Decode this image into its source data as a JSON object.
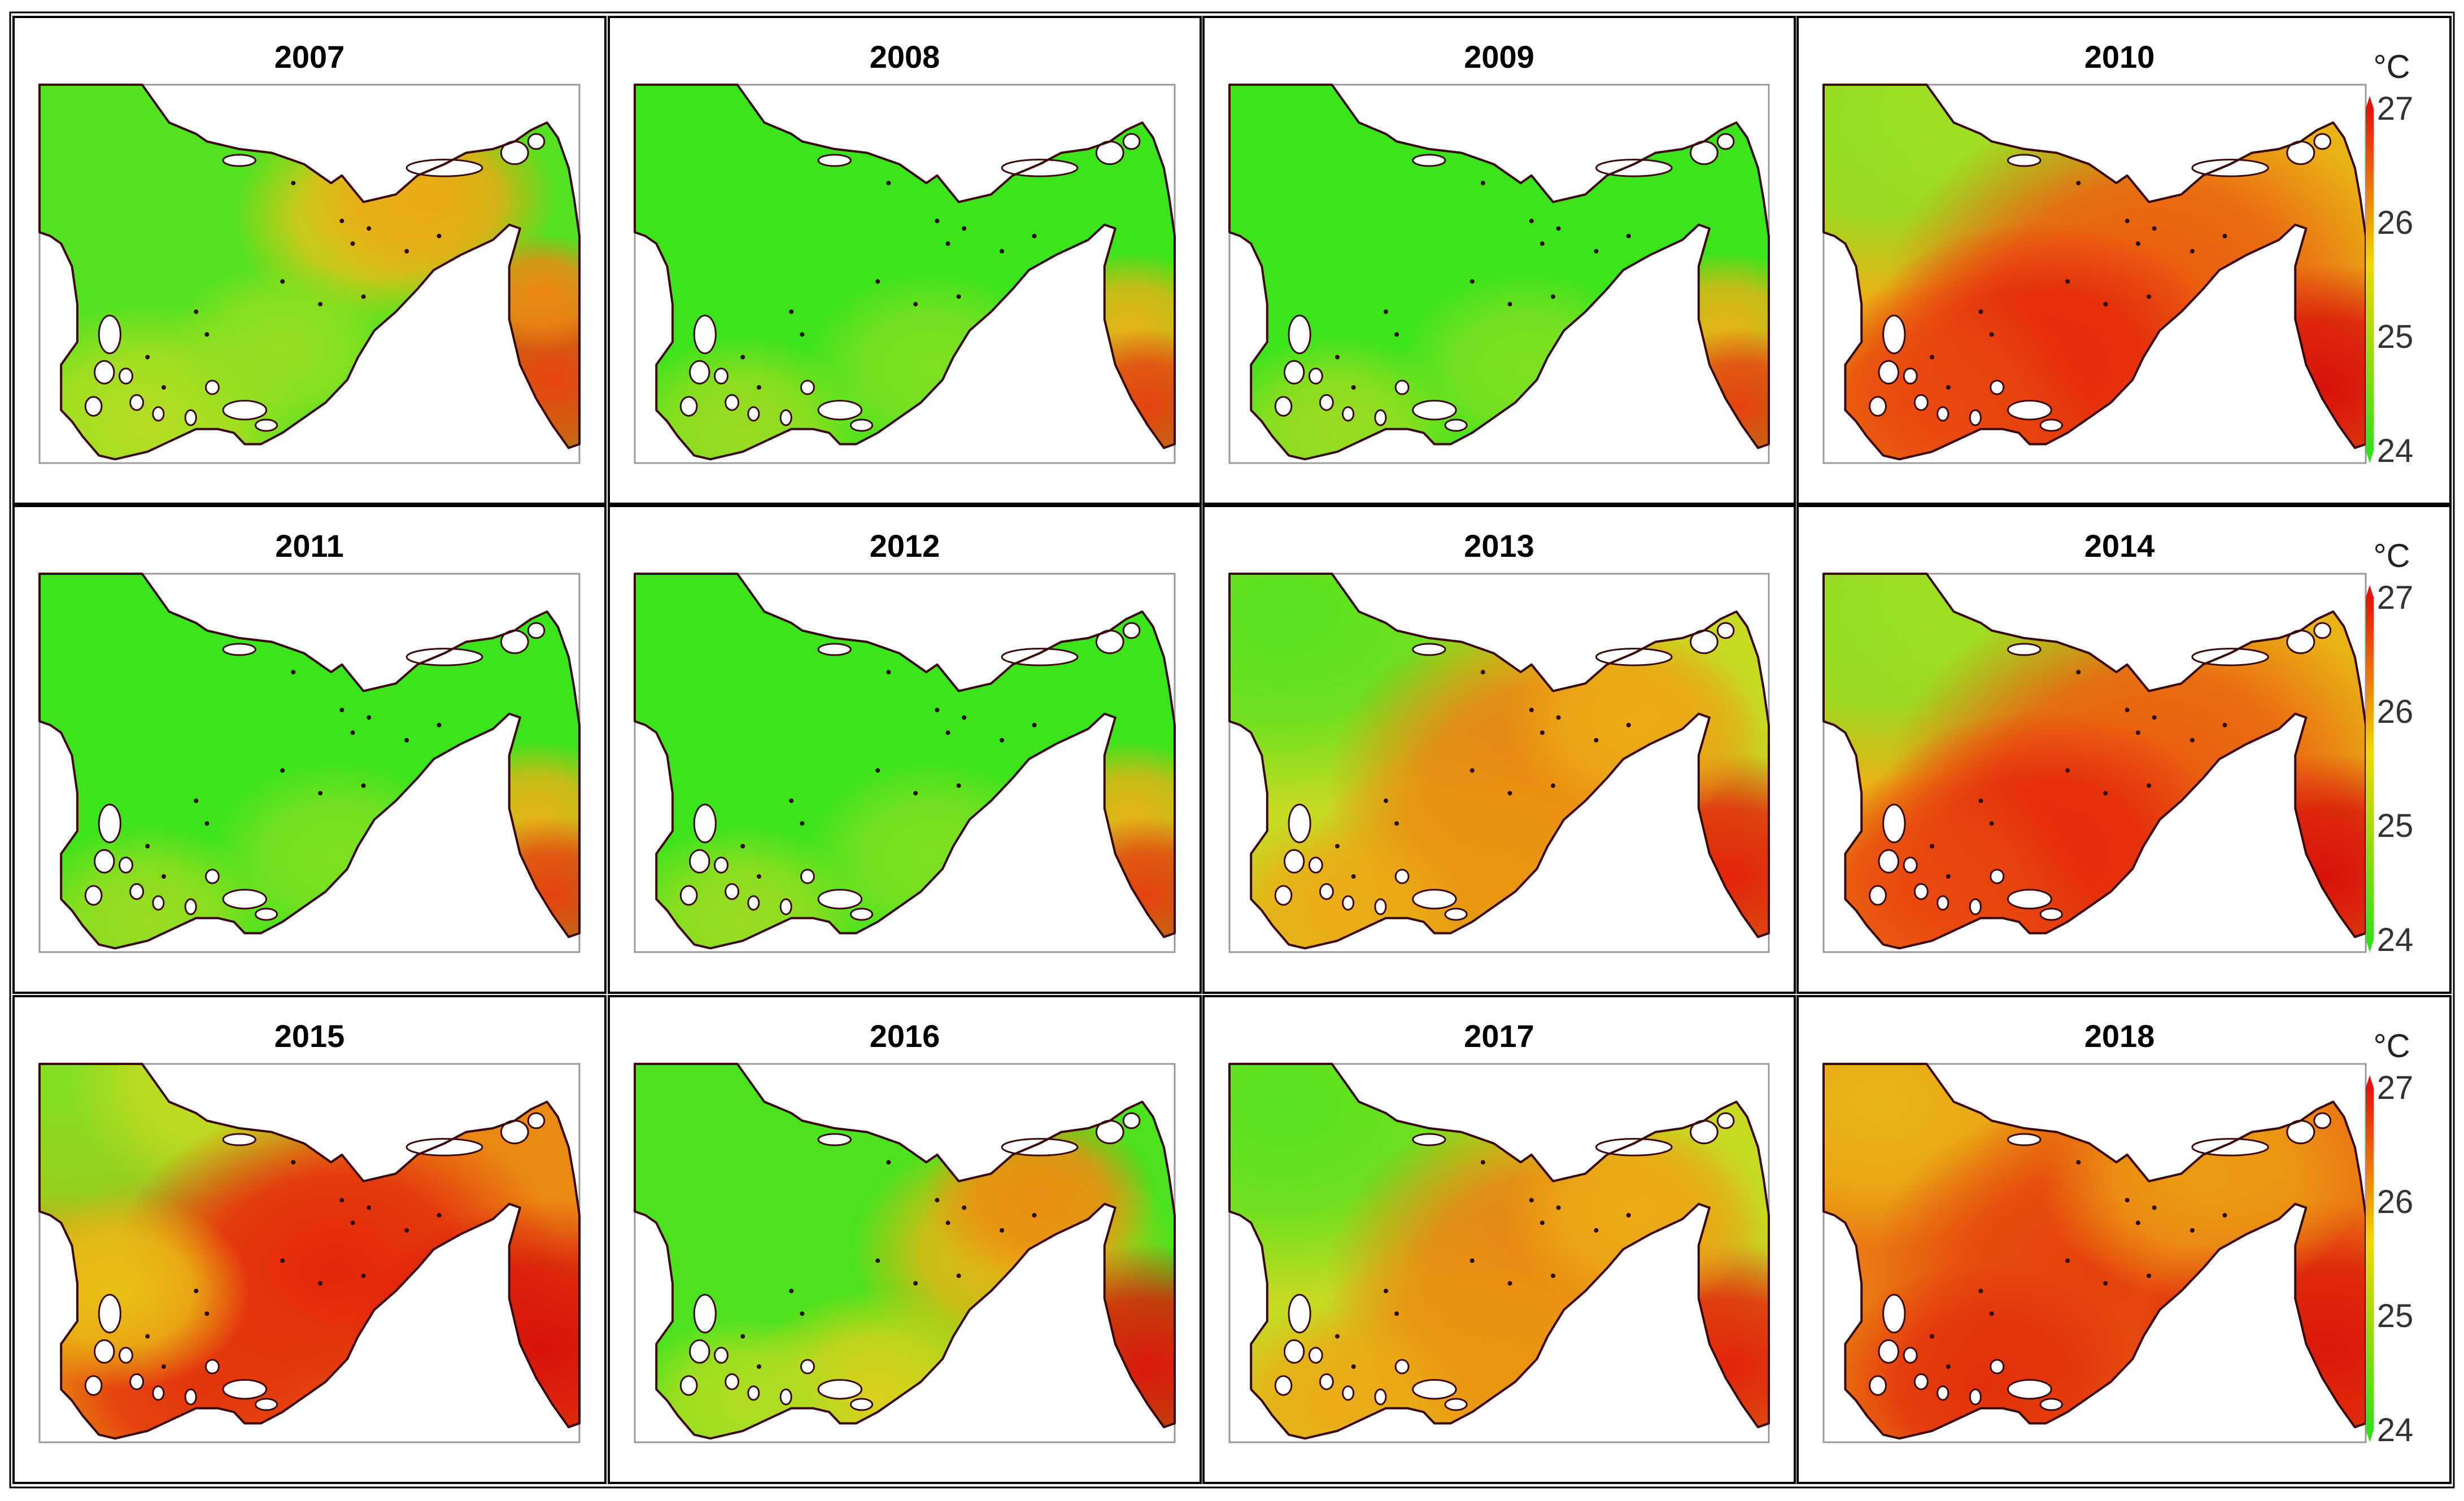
{
  "figure": {
    "panels": [
      {
        "year": "2007",
        "color_scheme": "west-green-east-yellow"
      },
      {
        "year": "2008",
        "color_scheme": "mostly-green"
      },
      {
        "year": "2009",
        "color_scheme": "mostly-green"
      },
      {
        "year": "2010",
        "color_scheme": "mostly-warm"
      },
      {
        "year": "2011",
        "color_scheme": "mostly-green"
      },
      {
        "year": "2012",
        "color_scheme": "mostly-green"
      },
      {
        "year": "2013",
        "color_scheme": "south-warm"
      },
      {
        "year": "2014",
        "color_scheme": "mostly-warm"
      },
      {
        "year": "2015",
        "color_scheme": "very-warm"
      },
      {
        "year": "2016",
        "color_scheme": "west-green-east-warm"
      },
      {
        "year": "2017",
        "color_scheme": "south-warm"
      },
      {
        "year": "2018",
        "color_scheme": "hot"
      }
    ],
    "colorbar": {
      "unit": "°C",
      "ticks": [
        "27",
        "26",
        "25",
        "24"
      ],
      "min": 24,
      "max": 27,
      "colors": {
        "high": "#e4140a",
        "mid": "#f2d60c",
        "low": "#34e01a"
      }
    },
    "outline_color": "#3a0a0a"
  }
}
